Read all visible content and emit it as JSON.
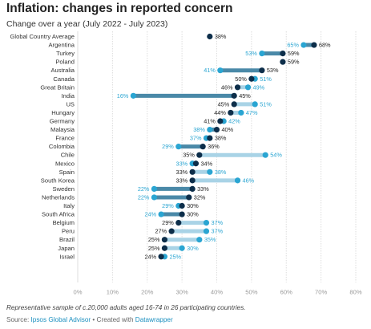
{
  "header": {
    "title": "Inflation: changes in reported concern",
    "subtitle": "Change over a year (July 2022 - July 2023)"
  },
  "footer": {
    "note": "Representative sample of c.20,000 adults aged 16-74 in 26 participating countries.",
    "source_prefix": "Source: ",
    "source_name": "Ipsos Global Advisor",
    "created_with": " • Created with ",
    "tool": "Datawrapper"
  },
  "colors": {
    "start_dot": "#2aa5d2",
    "end_dot": "#0d2e4a",
    "bar_light": "#a9d3e6",
    "bar_dark": "#4a89a8",
    "label_start": "#2aa5d2",
    "label_end": "#222222",
    "grid": "#dddddd",
    "tick": "#999999"
  },
  "chart_data": {
    "type": "dumbbell",
    "title": "Inflation: changes in reported concern",
    "subtitle": "Change over a year (July 2022 - July 2023)",
    "xlim": [
      0,
      80
    ],
    "x_ticks": [
      "0%",
      "10%",
      "20%",
      "30%",
      "40%",
      "50%",
      "60%",
      "70%",
      "80%"
    ],
    "grid": true,
    "value_suffix": "%",
    "categories": [
      "Global Country Average",
      "Argentina",
      "Turkey",
      "Poland",
      "Australia",
      "Canada",
      "Great Britain",
      "India",
      "US",
      "Hungary",
      "Germany",
      "Malaysia",
      "France",
      "Colombia",
      "Chile",
      "Mexico",
      "Spain",
      "South Korea",
      "Sweden",
      "Netherlands",
      "Italy",
      "South Africa",
      "Belgium",
      "Peru",
      "Brazil",
      "Japan",
      "Israel"
    ],
    "series": [
      {
        "name": "July 2022",
        "values": [
          38,
          65,
          53,
          59,
          41,
          51,
          49,
          16,
          51,
          47,
          42,
          38,
          37,
          29,
          54,
          33,
          38,
          46,
          22,
          22,
          29,
          24,
          37,
          37,
          35,
          30,
          25
        ]
      },
      {
        "name": "July 2023",
        "values": [
          38,
          68,
          59,
          59,
          53,
          50,
          46,
          45,
          45,
          44,
          41,
          40,
          38,
          36,
          35,
          34,
          33,
          33,
          33,
          32,
          30,
          30,
          29,
          27,
          25,
          25,
          24
        ]
      }
    ]
  }
}
